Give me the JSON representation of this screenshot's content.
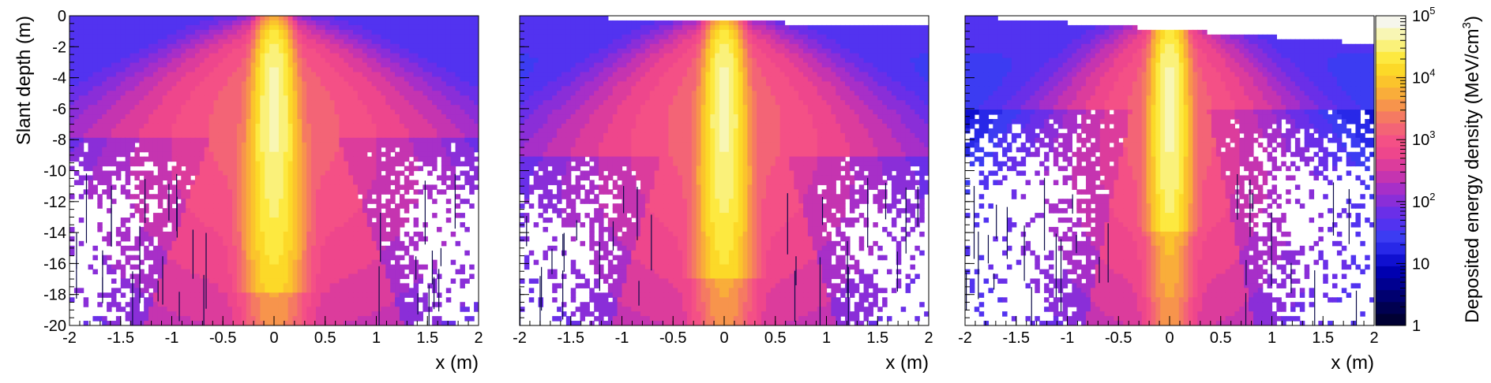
{
  "chart_data": {
    "panels": [
      {
        "type": "heatmap",
        "xlabel": "x (m)",
        "ylabel": "Slant depth (m)",
        "xlim": [
          -2,
          2
        ],
        "ylim": [
          -20,
          0
        ],
        "x_ticks": [
          -2,
          -1.5,
          -1,
          -0.5,
          0,
          0.5,
          1,
          1.5,
          2
        ],
        "y_ticks": [
          0,
          -2,
          -4,
          -6,
          -8,
          -10,
          -12,
          -14,
          -16,
          -18,
          -20
        ],
        "core_half_width_at_bottom": 0.12,
        "core_length": 18,
        "halo_half_width_at_bottom": 2.3,
        "sparse_start_depth": -8,
        "surface_top_left": 0,
        "surface_top_right": 0
      },
      {
        "type": "heatmap",
        "xlabel": "x (m)",
        "ylabel": "",
        "xlim": [
          -2,
          2
        ],
        "ylim": [
          -20,
          0
        ],
        "x_ticks": [
          -2,
          -1.5,
          -1,
          -0.5,
          0,
          0.5,
          1,
          1.5,
          2
        ],
        "y_ticks": [
          0,
          -2,
          -4,
          -6,
          -8,
          -10,
          -12,
          -14,
          -16,
          -18,
          -20
        ],
        "core_half_width_at_bottom": 0.1,
        "core_length": 17,
        "halo_half_width_at_bottom": 2.0,
        "sparse_start_depth": -9,
        "surface_top_left": 0,
        "surface_top_right": -0.7
      },
      {
        "type": "heatmap",
        "xlabel": "x (m)",
        "ylabel": "",
        "xlim": [
          -2,
          2
        ],
        "ylim": [
          -20,
          0
        ],
        "x_ticks": [
          -2,
          -1.5,
          -1,
          -0.5,
          0,
          0.5,
          1,
          1.5,
          2
        ],
        "y_ticks": [
          0,
          -2,
          -4,
          -6,
          -8,
          -10,
          -12,
          -14,
          -16,
          -18,
          -20
        ],
        "core_half_width_at_bottom": 0.05,
        "core_length": 14,
        "halo_half_width_at_bottom": 1.5,
        "sparse_start_depth": -6,
        "surface_top_left": 0,
        "surface_top_right": -1.8
      }
    ],
    "colorbar": {
      "label": "Deposited energy density (MeV/cm",
      "label_exponent": "3",
      "label_close": ")",
      "scale": "log",
      "range": [
        1,
        100000
      ],
      "ticks": [
        {
          "value": 1,
          "base": "1",
          "exp": ""
        },
        {
          "value": 10,
          "base": "10",
          "exp": ""
        },
        {
          "value": 100,
          "base": "10",
          "exp": "2"
        },
        {
          "value": 1000,
          "base": "10",
          "exp": "3"
        },
        {
          "value": 10000,
          "base": "10",
          "exp": "4"
        },
        {
          "value": 100000,
          "base": "10",
          "exp": "5"
        }
      ],
      "colors": [
        "#000033",
        "#000050",
        "#000070",
        "#000090",
        "#0000b0",
        "#1010d0",
        "#2828e8",
        "#3c3cf2",
        "#5233f0",
        "#6a2fe8",
        "#8a2ed8",
        "#a72fc8",
        "#c534b0",
        "#dc3c9c",
        "#ee468c",
        "#f45086",
        "#f36476",
        "#f57a62",
        "#f7944c",
        "#f9ad3a",
        "#fbc42c",
        "#fcd928",
        "#fde940",
        "#faf17a",
        "#f8f6b4",
        "#f6f6ec"
      ]
    }
  }
}
